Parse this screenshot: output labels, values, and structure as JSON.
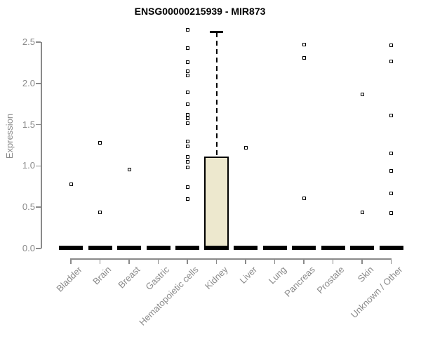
{
  "chart_data": {
    "type": "boxplot",
    "title": "ENSG00000215939 - MIR873",
    "xlabel": "",
    "ylabel": "Expression",
    "ylim": [
      0,
      2.5
    ],
    "y_ticks": [
      0,
      0.5,
      1,
      1.5,
      2,
      2.5
    ],
    "y_tick_labels": [
      "0.0",
      "0.5",
      "1.0",
      "1.5",
      "2.0",
      "2.5"
    ],
    "grid": false,
    "legend": "none",
    "categories": [
      "Bladder",
      "Brain",
      "Breast",
      "Gastric",
      "Hematopoietic cells",
      "Kidney",
      "Liver",
      "Lung",
      "Pancreas",
      "Prostate",
      "Skin",
      "Unknown / Other"
    ],
    "series": [
      {
        "name": "Bladder",
        "q1": 0,
        "median": 0,
        "q3": 0,
        "whisker_low": 0,
        "whisker_high": 0,
        "outliers": [
          0.78
        ]
      },
      {
        "name": "Brain",
        "q1": 0,
        "median": 0,
        "q3": 0,
        "whisker_low": 0,
        "whisker_high": 0,
        "outliers": [
          1.28,
          0.44
        ]
      },
      {
        "name": "Breast",
        "q1": 0,
        "median": 0,
        "q3": 0,
        "whisker_low": 0,
        "whisker_high": 0,
        "outliers": [
          0.96
        ]
      },
      {
        "name": "Gastric",
        "q1": 0,
        "median": 0,
        "q3": 0,
        "whisker_low": 0,
        "whisker_high": 0,
        "outliers": []
      },
      {
        "name": "Hematopoietic cells",
        "q1": 0,
        "median": 0,
        "q3": 0,
        "whisker_low": 0,
        "whisker_high": 0,
        "outliers": [
          2.65,
          2.43,
          2.26,
          2.15,
          2.1,
          1.89,
          1.75,
          1.62,
          1.58,
          1.52,
          1.3,
          1.24,
          1.11,
          1.05,
          0.98,
          0.74,
          0.6
        ]
      },
      {
        "name": "Kidney",
        "q1": 0,
        "median": 0,
        "q3": 1.11,
        "whisker_low": 0,
        "whisker_high": 2.62,
        "outliers": []
      },
      {
        "name": "Liver",
        "q1": 0,
        "median": 0,
        "q3": 0,
        "whisker_low": 0,
        "whisker_high": 0,
        "outliers": [
          1.22
        ]
      },
      {
        "name": "Lung",
        "q1": 0,
        "median": 0,
        "q3": 0,
        "whisker_low": 0,
        "whisker_high": 0,
        "outliers": []
      },
      {
        "name": "Pancreas",
        "q1": 0,
        "median": 0,
        "q3": 0,
        "whisker_low": 0,
        "whisker_high": 0,
        "outliers": [
          2.47,
          2.31,
          0.61
        ]
      },
      {
        "name": "Prostate",
        "q1": 0,
        "median": 0,
        "q3": 0,
        "whisker_low": 0,
        "whisker_high": 0,
        "outliers": []
      },
      {
        "name": "Skin",
        "q1": 0,
        "median": 0,
        "q3": 0,
        "whisker_low": 0,
        "whisker_high": 0,
        "outliers": [
          1.87,
          0.44
        ]
      },
      {
        "name": "Unknown / Other",
        "q1": 0,
        "median": 0,
        "q3": 0,
        "whisker_low": 0,
        "whisker_high": 0,
        "outliers": [
          2.46,
          2.27,
          1.61,
          1.15,
          0.94,
          0.67,
          0.43
        ]
      }
    ]
  },
  "colors": {
    "title": "#000000",
    "axis": "#8A8A8A",
    "tick_label": "#8A8A8A",
    "box_fill": "#EDE8CE",
    "box_border": "#000000",
    "outlier": "#000000",
    "background": "#FFFFFF"
  }
}
